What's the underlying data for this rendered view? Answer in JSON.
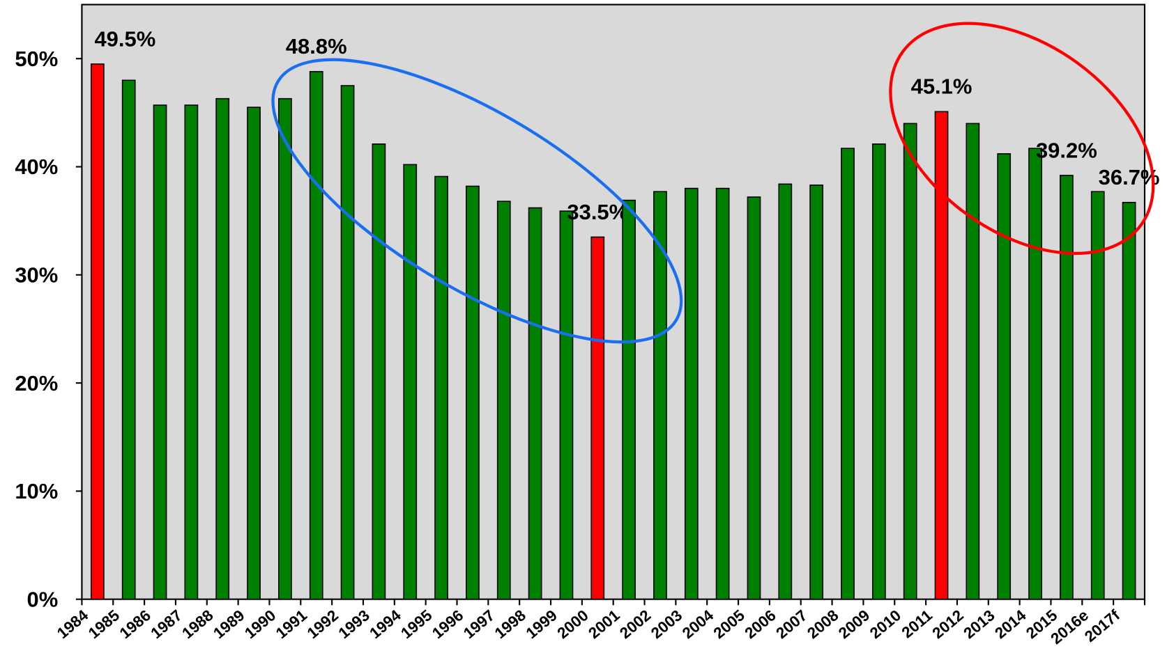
{
  "chart_data": {
    "type": "bar",
    "categories": [
      "1984",
      "1985",
      "1986",
      "1987",
      "1988",
      "1989",
      "1990",
      "1991",
      "1992",
      "1993",
      "1994",
      "1995",
      "1996",
      "1997",
      "1998",
      "1999",
      "2000",
      "2001",
      "2002",
      "2003",
      "2004",
      "2005",
      "2006",
      "2007",
      "2008",
      "2009",
      "2010",
      "2011",
      "2012",
      "2013",
      "2014",
      "2015",
      "2016e",
      "2017f"
    ],
    "values": [
      49.5,
      48.0,
      45.7,
      45.7,
      46.3,
      45.5,
      46.3,
      48.8,
      47.5,
      42.1,
      40.2,
      39.1,
      38.2,
      36.8,
      36.2,
      35.9,
      33.5,
      36.9,
      37.7,
      38.0,
      38.0,
      37.2,
      38.4,
      38.3,
      41.7,
      42.1,
      44.0,
      45.1,
      44.0,
      41.2,
      41.7,
      39.2,
      37.7,
      36.7
    ],
    "value_labels": [
      "49.5%",
      null,
      null,
      null,
      null,
      null,
      null,
      "48.8%",
      null,
      null,
      null,
      null,
      null,
      null,
      null,
      null,
      "33.5%",
      null,
      null,
      null,
      null,
      null,
      null,
      null,
      null,
      null,
      null,
      "45.1%",
      null,
      null,
      null,
      "39.2%",
      null,
      "36.7%"
    ],
    "colors": [
      "#ff0000",
      "#008000",
      "#008000",
      "#008000",
      "#008000",
      "#008000",
      "#008000",
      "#008000",
      "#008000",
      "#008000",
      "#008000",
      "#008000",
      "#008000",
      "#008000",
      "#008000",
      "#008000",
      "#ff0000",
      "#008000",
      "#008000",
      "#008000",
      "#008000",
      "#008000",
      "#008000",
      "#008000",
      "#008000",
      "#008000",
      "#008000",
      "#ff0000",
      "#008000",
      "#008000",
      "#008000",
      "#008000",
      "#008000",
      "#008000"
    ],
    "ylim": [
      0,
      55
    ],
    "yticks": [
      {
        "value": 0,
        "label": "0%"
      },
      {
        "value": 10,
        "label": "10%"
      },
      {
        "value": 20,
        "label": "20%"
      },
      {
        "value": 30,
        "label": "30%"
      },
      {
        "value": 40,
        "label": "40%"
      },
      {
        "value": 50,
        "label": "50%"
      }
    ],
    "grid": false
  }
}
